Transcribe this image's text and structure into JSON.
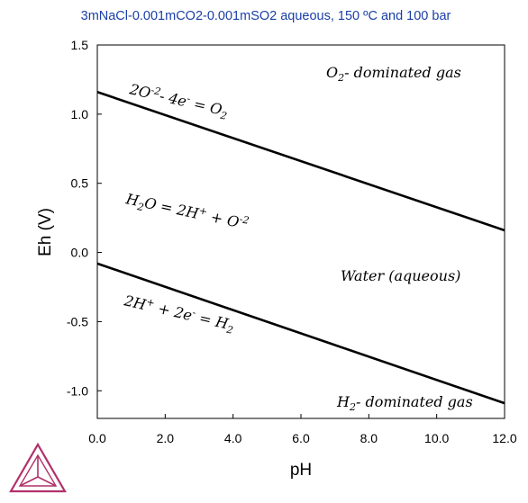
{
  "chart_data": {
    "type": "line",
    "title": "3mNaCl-0.001mCO2-0.001mSO2 aqueous, 150 ºC and 100 bar",
    "xlabel": "pH",
    "ylabel": "Eh (V)",
    "xlim": [
      0,
      12
    ],
    "ylim": [
      -1.2,
      1.5
    ],
    "x_ticks": [
      "0.0",
      "2.0",
      "4.0",
      "6.0",
      "8.0",
      "10.0",
      "12.0"
    ],
    "y_ticks": [
      "1.5",
      "1.0",
      "0.5",
      "0.0",
      "-0.5",
      "-1.0"
    ],
    "grid": false,
    "series": [
      {
        "x": [
          0,
          12
        ],
        "values": [
          1.16,
          0.16
        ],
        "color": "#000000"
      },
      {
        "x": [
          0,
          12
        ],
        "values": [
          -0.08,
          -1.09
        ],
        "color": "#000000"
      }
    ],
    "annotations": {
      "o2_region": "O2- dominated gas",
      "o2_line": "2O-2- 4e- = O2",
      "water_line": "H2O = 2H+ + O-2",
      "water_region": "Water (aqueous)",
      "h2_line": "2H+ + 2e- = H2",
      "h2_region": "H2- dominated gas"
    }
  },
  "logo_icon": "thermo-calc-logo-icon",
  "colors": {
    "title": "#1a3fa6",
    "logo": "#b0306a"
  }
}
